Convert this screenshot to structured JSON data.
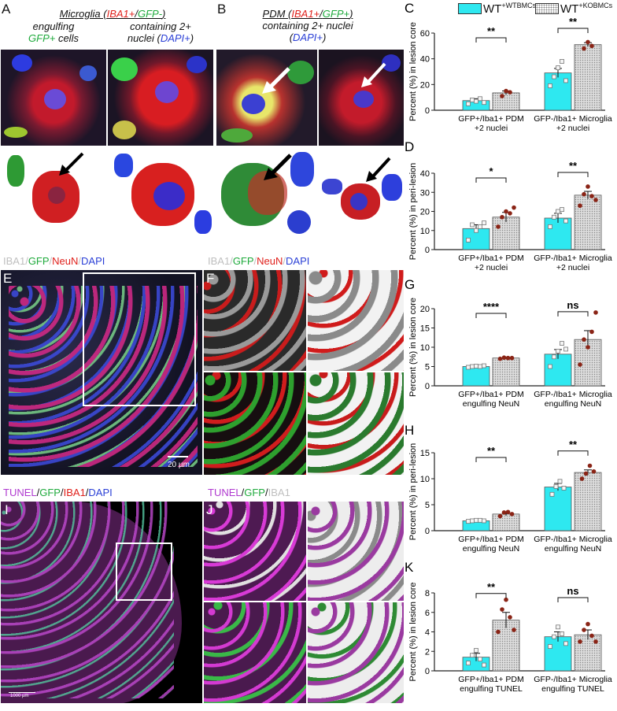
{
  "panels": {
    "A": {
      "letter": "A",
      "header_line1_a": "Microglia (",
      "header_iba": "IBA1+",
      "header_slash": "/",
      "header_gfp": "GFP-",
      "header_close": ")",
      "sub1a": "engulfing",
      "sub1b_gfp": "GFP+",
      "sub1b_rest": " cells",
      "sub2a": "containing 2+",
      "sub2b_a": "nuclei (",
      "sub2b_dapi": "DAPI+",
      "sub2b_close": ")"
    },
    "B": {
      "letter": "B",
      "header_a": "PDM (",
      "header_iba": "IBA1+",
      "header_slash": "/",
      "header_gfp": "GFP+",
      "header_close": ")",
      "sub1": "containing 2+ nuclei",
      "sub2_open": "(",
      "sub2_dapi": "DAPI+",
      "sub2_close": ")"
    },
    "E": {
      "letter": "E",
      "stain": [
        "IBA1",
        "/",
        "GFP",
        "/",
        "NeuN",
        "/",
        "DAPI"
      ],
      "scale": "20 µm"
    },
    "F": {
      "letter": "F",
      "stain": [
        "IBA1",
        "/",
        "GFP",
        "/",
        "NeuN",
        "/",
        "DAPI"
      ]
    },
    "I": {
      "letter": "I",
      "stain": [
        "TUNEL",
        "/",
        "GFP",
        "/",
        "IBA1",
        "/",
        "DAPI"
      ],
      "scale": "1000 µm"
    },
    "J": {
      "letter": "J",
      "stain": [
        "TUNEL",
        "/",
        "GFP",
        "/",
        "IBA1"
      ]
    }
  },
  "legend": {
    "wt_label": "WT",
    "wt_sup": "+WTBMCs",
    "ko_label": "WT",
    "ko_sup": "+KOBMCs",
    "wt_color": "#2ee8f0",
    "ko_color": "#d9d9d9"
  },
  "chart_data": [
    {
      "panel": "C",
      "type": "bar",
      "ylabel": "Percent (%) in lesion core",
      "ylim": [
        0,
        60
      ],
      "yticks": [
        0,
        20,
        40,
        60
      ],
      "categories": [
        "GFP+/Iba1+ PDM\n+2 nuclei",
        "GFP-/Iba1+ Microglia\n+2 nuclei"
      ],
      "series": [
        {
          "values": [
            7.5,
            13.5
          ],
          "err": [
            1.5,
            1.5
          ]
        },
        {
          "values": [
            29,
            51
          ],
          "err": [
            3.5,
            1.5
          ]
        }
      ],
      "points": [
        [
          [
            5,
            8,
            7,
            9,
            6
          ],
          [
            11,
            15,
            14
          ]
        ],
        [
          [
            19,
            26,
            33,
            38,
            23
          ],
          [
            48,
            53,
            50
          ]
        ]
      ],
      "significance": [
        "**",
        "**"
      ]
    },
    {
      "panel": "D",
      "type": "bar",
      "ylabel": "Percent (%) in peri-lesion",
      "ylim": [
        0,
        40
      ],
      "yticks": [
        0,
        10,
        20,
        30,
        40
      ],
      "categories": [
        "GFP+/Iba1+ PDM\n+2 nuclei",
        "GFP-/Iba1+ Microglia\n+2 nuclei"
      ],
      "series": [
        {
          "values": [
            11,
            17
          ],
          "err": [
            2,
            2.5
          ]
        },
        {
          "values": [
            16.5,
            28.5
          ],
          "err": [
            2.5,
            2
          ]
        }
      ],
      "points": [
        [
          [
            5,
            13,
            10,
            12,
            14
          ],
          [
            12,
            17,
            20,
            19,
            22
          ]
        ],
        [
          [
            12,
            17,
            20,
            21,
            15
          ],
          [
            23,
            29,
            33,
            28,
            26
          ]
        ]
      ],
      "significance": [
        "*",
        "**"
      ]
    },
    {
      "panel": "G",
      "type": "bar",
      "ylabel": "Percent (%) in lesion core",
      "ylim": [
        0,
        20
      ],
      "yticks": [
        0,
        5,
        10,
        15,
        20
      ],
      "categories": [
        "GFP+/Iba1+ PDM\nengulfing NeuN",
        "GFP-/Iba1+ Microglia\nengulfing NeuN"
      ],
      "series": [
        {
          "values": [
            5,
            7.2
          ],
          "err": [
            0.2,
            0.2
          ]
        },
        {
          "values": [
            8.2,
            12
          ],
          "err": [
            1.2,
            2.3
          ]
        }
      ],
      "points": [
        [
          [
            4.8,
            5,
            5.1,
            5,
            5.2
          ],
          [
            7,
            7.3,
            7.2,
            7.2
          ]
        ],
        [
          [
            5,
            7.5,
            9,
            11,
            9.5
          ],
          [
            5.5,
            12,
            10,
            14,
            19
          ]
        ]
      ],
      "significance": [
        "****",
        "ns"
      ]
    },
    {
      "panel": "H",
      "type": "bar",
      "ylabel": "Percent (%) in peri-lesion",
      "ylim": [
        0,
        15
      ],
      "yticks": [
        0,
        5,
        10,
        15
      ],
      "categories": [
        "GFP+/Iba1+ PDM\nengulfing NeuN",
        "GFP-/Iba1+ Microglia\nengulfing NeuN"
      ],
      "series": [
        {
          "values": [
            1.9,
            3.2
          ],
          "err": [
            0.1,
            0.3
          ]
        },
        {
          "values": [
            8.4,
            11.2
          ],
          "err": [
            0.7,
            0.5
          ]
        }
      ],
      "points": [
        [
          [
            1.8,
            1.9,
            2,
            2,
            1.9
          ],
          [
            2.8,
            3.5,
            3.6,
            3.2
          ]
        ],
        [
          [
            7,
            8.5,
            9.5,
            8.2
          ],
          [
            10,
            11,
            12.5,
            11.4
          ]
        ]
      ],
      "significance": [
        "**",
        "**"
      ]
    },
    {
      "panel": "K",
      "type": "bar",
      "ylabel": "Percent (%) in lesion core",
      "ylim": [
        0,
        8
      ],
      "yticks": [
        0,
        2,
        4,
        6,
        8
      ],
      "categories": [
        "GFP+/Iba1+ PDM\nengulfing TUNEL",
        "GFP-/Iba1+ Microglia\nengulfing TUNEL"
      ],
      "series": [
        {
          "values": [
            1.4,
            5.2
          ],
          "err": [
            0.4,
            0.8
          ]
        },
        {
          "values": [
            3.5,
            3.7
          ],
          "err": [
            0.5,
            0.5
          ]
        }
      ],
      "points": [
        [
          [
            0.8,
            1.6,
            2.1,
            1.2,
            0.6
          ],
          [
            4,
            6.3,
            7.3,
            5.5,
            4.2
          ]
        ],
        [
          [
            2.5,
            3.5,
            4.5,
            3.8,
            2.8
          ],
          [
            3,
            4.2,
            4.8,
            3.6,
            3
          ]
        ]
      ],
      "significance": [
        "**",
        "ns"
      ]
    }
  ]
}
